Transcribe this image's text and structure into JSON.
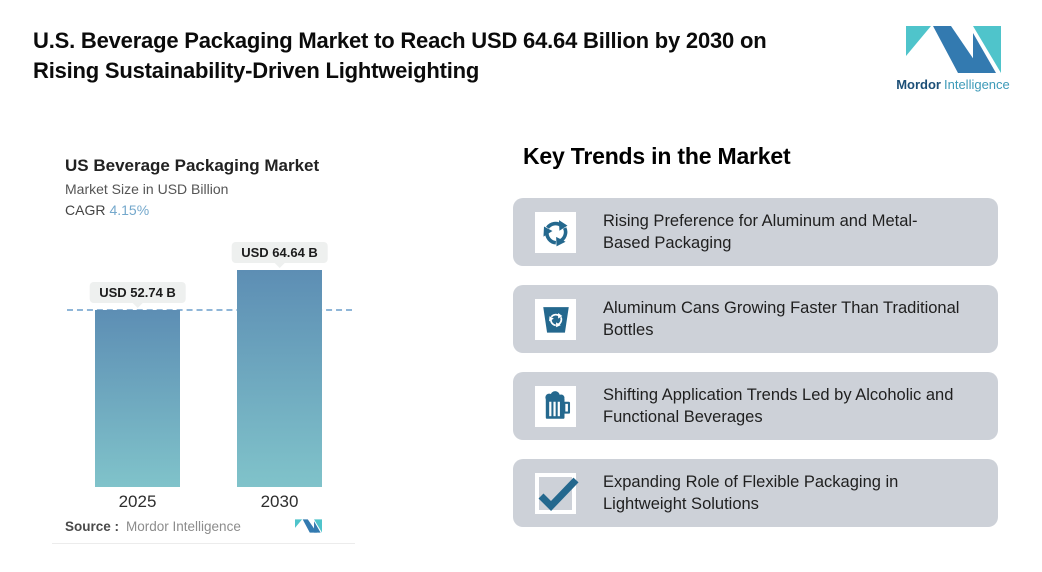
{
  "page": {
    "title_lines": [
      "U.S. Beverage Packaging Market to Reach USD 64.64 Billion by 2030 on",
      "Rising Sustainability-Driven Lightweighting"
    ]
  },
  "brand": {
    "name_primary": "Mordor",
    "name_secondary": "Intelligence",
    "colors": {
      "logo_blue": "#337ab0",
      "logo_teal": "#4fc4cb",
      "text_primary": "#1c4f77",
      "text_secondary": "#3d9ab8"
    }
  },
  "chart": {
    "title": "US Beverage Packaging Market",
    "subtitle": "Market Size in USD Billion",
    "cagr_label": "CAGR",
    "cagr_value": "4.15%",
    "source_label": "Source :",
    "source_value": "Mordor Intelligence"
  },
  "chart_data": {
    "type": "bar",
    "categories": [
      "2025",
      "2030"
    ],
    "values": [
      52.74,
      64.64
    ],
    "value_labels": [
      "USD 52.74 B",
      "USD 64.64 B"
    ],
    "title": "US Beverage Packaging Market",
    "ylabel": "Market Size in USD Billion",
    "ylim": [
      0,
      64.64
    ],
    "cagr": "4.15%",
    "reference_line": 52.74,
    "grid": false,
    "legend": "none",
    "bar_color_top": "#5d8eb4",
    "bar_color_bottom": "#80c3ca",
    "reference_line_color": "#8fb6d8"
  },
  "trends": {
    "heading": "Key Trends in the Market",
    "card_background": "#cdd1d8",
    "icon_color": "#24688e",
    "items": [
      {
        "icon": "recycle-arrows-icon",
        "lines": [
          "Rising Preference for Aluminum and Metal-",
          "Based Packaging"
        ]
      },
      {
        "icon": "recycle-bin-icon",
        "lines": [
          "Aluminum Cans Growing Faster Than Traditional",
          "Bottles"
        ]
      },
      {
        "icon": "beer-mug-icon",
        "lines": [
          "Shifting Application Trends Led by Alcoholic and",
          "Functional Beverages"
        ]
      },
      {
        "icon": "checkmark-icon",
        "lines": [
          "Expanding Role of Flexible Packaging in",
          "Lightweight Solutions"
        ]
      }
    ]
  }
}
